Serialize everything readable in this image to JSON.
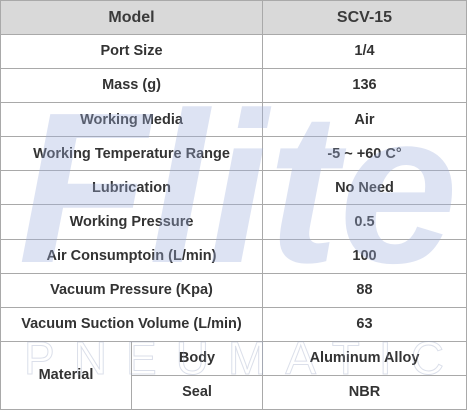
{
  "header": {
    "col1": "Model",
    "col2": "SCV-15"
  },
  "rows": [
    {
      "label": "Port Size",
      "value": "1/4"
    },
    {
      "label": "Mass (g)",
      "value": "136"
    },
    {
      "label": "Working Media",
      "value": "Air"
    },
    {
      "label": "Working Temperature Range",
      "value": "-5 ~ +60 C°"
    },
    {
      "label": "Lubrication",
      "value": "No Need"
    },
    {
      "label": "Working Pressure",
      "value": "0.5"
    },
    {
      "label": "Air Consumptoin (L/min)",
      "value": "100"
    },
    {
      "label": "Vacuum Pressure (Kpa)",
      "value": "88"
    },
    {
      "label": "Vacuum Suction Volume (L/min)",
      "value": "63"
    }
  ],
  "material": {
    "label": "Material",
    "sub": [
      {
        "label": "Body",
        "value": "Aluminum Alloy"
      },
      {
        "label": "Seal",
        "value": "NBR"
      }
    ]
  },
  "watermark": {
    "logo_text": "Flite",
    "sub_text": "PNEUMATIC",
    "color": "#c9d2ea"
  }
}
